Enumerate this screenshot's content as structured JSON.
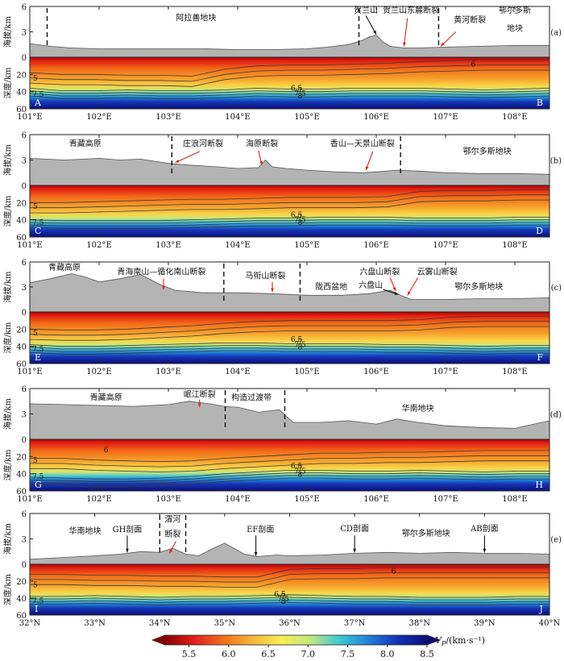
{
  "colors": {
    "topo_fill": "#b4b4b4",
    "topo_line": "#555555",
    "annotation_arrow": "#e0201a",
    "contour": "#3a3a3a",
    "colormap": [
      "#8b0000",
      "#e0201a",
      "#f06f1a",
      "#f6b53a",
      "#f8ee55",
      "#bfe780",
      "#3ec6d2",
      "#1f7fd6",
      "#1431b4",
      "#0c0c78"
    ]
  },
  "colorbar": {
    "label": "Vp/(km·s⁻¹)",
    "label_main": "V",
    "label_sub": "P",
    "label_unit": "/(km·s⁻¹)",
    "ticks": [
      "5.5",
      "6.0",
      "6.5",
      "7.0",
      "7.5",
      "8.0",
      "8.5"
    ],
    "range": [
      5.2,
      8.5
    ]
  },
  "chart_data": [
    {
      "type": "heatmap",
      "panel": "(a)",
      "ylabel_top": "海拔/km",
      "ylabel_bottom": "深度/km",
      "elev_ticks": [
        "6",
        "3"
      ],
      "depth_ticks": [
        "0",
        "20",
        "40",
        "60"
      ],
      "elev_range": [
        0,
        6
      ],
      "depth_range": [
        0,
        60
      ],
      "x_ticks": [
        "101°E",
        "102°E",
        "103°E",
        "104°E",
        "105°E",
        "106°E",
        "107°E",
        "108°E"
      ],
      "x_range": [
        101,
        108.5
      ],
      "x_tick_values": [
        101,
        102,
        103,
        104,
        105,
        106,
        107,
        108
      ],
      "endpoints": [
        "A",
        "B"
      ],
      "topo_x": [
        101,
        101.3,
        101.6,
        102,
        102.5,
        103,
        103.5,
        104,
        104.5,
        105,
        105.3,
        105.6,
        105.8,
        105.9,
        106.0,
        106.1,
        106.2,
        106.4,
        106.6,
        107,
        107.5,
        108,
        108.5
      ],
      "topo_y": [
        1.6,
        1.3,
        1.1,
        1.0,
        1.0,
        1.0,
        1.0,
        0.9,
        0.9,
        1.0,
        1.2,
        1.5,
        2.0,
        2.4,
        2.6,
        1.8,
        1.3,
        1.1,
        1.1,
        1.2,
        1.3,
        1.4,
        1.4
      ],
      "dashes": [
        101.25,
        105.75,
        106.9
      ],
      "labels": [
        {
          "text": "阿拉善地块",
          "x": 103.4,
          "y": 4.7
        },
        {
          "text": "贺兰山",
          "x": 105.85,
          "y": 5.6
        },
        {
          "text": "贺兰山东麓断裂",
          "x": 106.5,
          "y": 5.6
        },
        {
          "text": "黄河断裂",
          "x": 107.35,
          "y": 4.5
        },
        {
          "text": "鄂尔多斯",
          "x": 108.0,
          "y": 5.6
        },
        {
          "text": "地块",
          "x": 108.0,
          "y": 3.5
        }
      ],
      "arrows": [
        {
          "x1": 105.85,
          "y1": 4.9,
          "x2": 106.0,
          "y2": 2.7,
          "color": "#111"
        },
        {
          "x1": 106.45,
          "y1": 4.6,
          "x2": 106.4,
          "y2": 1.3,
          "color": "#e0201a"
        },
        {
          "x1": 107.15,
          "y1": 3.0,
          "x2": 106.93,
          "y2": 1.3,
          "color": "#e0201a"
        }
      ],
      "contour_labels": [
        {
          "text": "6",
          "x": 107.4,
          "y": 8
        },
        {
          "text": "6.5",
          "x": 104.85,
          "y": 36
        },
        {
          "text": "7",
          "x": 104.9,
          "y": 39
        },
        {
          "text": "7.5",
          "x": 104.9,
          "y": 42
        },
        {
          "text": "8",
          "x": 104.9,
          "y": 45
        }
      ],
      "left_contour_labels": [
        "5",
        "7.5"
      ],
      "surface_depth": [
        18,
        20,
        20,
        21,
        21,
        22,
        14,
        10,
        9,
        9,
        8,
        7,
        5,
        4,
        3,
        3,
        3
      ],
      "moho_depth": [
        42,
        45,
        45,
        44,
        45,
        45,
        44,
        42,
        43,
        43,
        42,
        42,
        42,
        43,
        44,
        43,
        42
      ]
    },
    {
      "type": "heatmap",
      "panel": "(b)",
      "ylabel_top": "海拔/km",
      "ylabel_bottom": "深度/km",
      "elev_ticks": [
        "6",
        "3"
      ],
      "depth_ticks": [
        "0",
        "20",
        "40",
        "60"
      ],
      "elev_range": [
        0,
        6
      ],
      "depth_range": [
        0,
        60
      ],
      "x_ticks": [
        "101°E",
        "102°E",
        "103°E",
        "104°E",
        "105°E",
        "106°E",
        "107°E",
        "108°E"
      ],
      "x_range": [
        101,
        108.5
      ],
      "x_tick_values": [
        101,
        102,
        103,
        104,
        105,
        106,
        107,
        108
      ],
      "endpoints": [
        "C",
        "D"
      ],
      "topo_x": [
        101,
        101.5,
        102,
        102.3,
        102.6,
        103,
        103.3,
        103.7,
        104,
        104.3,
        104.4,
        104.5,
        104.7,
        105,
        105.4,
        105.8,
        106,
        106.3,
        106.6,
        107,
        107.5,
        108,
        108.5
      ],
      "topo_y": [
        3.2,
        3.0,
        3.2,
        3.0,
        3.1,
        2.6,
        2.4,
        2.2,
        2.0,
        2.1,
        3.0,
        2.2,
        2.0,
        1.8,
        1.6,
        1.5,
        1.6,
        1.8,
        1.7,
        1.5,
        1.4,
        1.4,
        1.3
      ],
      "dashes": [
        103.05,
        106.35
      ],
      "labels": [
        {
          "text": "青藏高原",
          "x": 101.8,
          "y": 5.0
        },
        {
          "text": "庄浪河断裂",
          "x": 103.5,
          "y": 5.0
        },
        {
          "text": "海原断裂",
          "x": 104.35,
          "y": 5.0
        },
        {
          "text": "香山—天景山断裂",
          "x": 105.8,
          "y": 5.0
        },
        {
          "text": "鄂尔多斯地块",
          "x": 107.6,
          "y": 4.1
        }
      ],
      "arrows": [
        {
          "x1": 103.45,
          "y1": 4.0,
          "x2": 103.1,
          "y2": 2.7,
          "color": "#e0201a"
        },
        {
          "x1": 104.3,
          "y1": 4.1,
          "x2": 104.35,
          "y2": 2.4,
          "color": "#e0201a"
        },
        {
          "x1": 105.95,
          "y1": 4.0,
          "x2": 105.85,
          "y2": 1.8,
          "color": "#e0201a"
        }
      ],
      "contour_labels": [
        {
          "text": "6.5",
          "x": 104.85,
          "y": 34
        },
        {
          "text": "7",
          "x": 104.9,
          "y": 37
        },
        {
          "text": "7.5",
          "x": 104.9,
          "y": 40
        },
        {
          "text": "8",
          "x": 104.9,
          "y": 43
        }
      ],
      "left_contour_labels": [
        "5",
        "7.5"
      ],
      "surface_depth": [
        20,
        20,
        19,
        18,
        17,
        16,
        16,
        15,
        14,
        14,
        14,
        13,
        7,
        6,
        6,
        5,
        5
      ],
      "moho_depth": [
        46,
        47,
        47,
        47,
        47,
        46,
        45,
        44,
        44,
        43,
        43,
        43,
        44,
        44,
        44,
        43,
        43
      ]
    },
    {
      "type": "heatmap",
      "panel": "(c)",
      "ylabel_top": "海拔/km",
      "ylabel_bottom": "深度/km",
      "elev_ticks": [
        "6",
        "3"
      ],
      "depth_ticks": [
        "0",
        "20",
        "40",
        "60"
      ],
      "elev_range": [
        0,
        6
      ],
      "depth_range": [
        0,
        60
      ],
      "x_ticks": [
        "101°E",
        "102°E",
        "103°E",
        "104°E",
        "105°E",
        "106°E",
        "107°E",
        "108°E"
      ],
      "x_range": [
        101,
        108.5
      ],
      "x_tick_values": [
        101,
        102,
        103,
        104,
        105,
        106,
        107,
        108
      ],
      "endpoints": [
        "E",
        "F"
      ],
      "topo_x": [
        101,
        101.3,
        101.6,
        101.8,
        102,
        102.3,
        102.6,
        102.9,
        103.1,
        103.5,
        104,
        104.5,
        105,
        105.5,
        105.9,
        106.2,
        106.35,
        106.5,
        107,
        107.5,
        108,
        108.5
      ],
      "topo_y": [
        3.5,
        4.0,
        4.6,
        4.2,
        3.6,
        4.0,
        4.5,
        3.2,
        2.6,
        2.3,
        2.3,
        2.2,
        2.0,
        2.0,
        2.2,
        2.6,
        2.0,
        1.5,
        1.5,
        1.6,
        1.6,
        1.7
      ],
      "dashes": [
        103.8,
        104.9
      ],
      "labels": [
        {
          "text": "青藏高原",
          "x": 101.5,
          "y": 5.4
        },
        {
          "text": "青海南山—循化南山断裂",
          "x": 102.9,
          "y": 4.9
        },
        {
          "text": "马衔山断裂",
          "x": 104.4,
          "y": 4.4
        },
        {
          "text": "陇西盆地",
          "x": 105.35,
          "y": 3.1
        },
        {
          "text": "六盘山断裂",
          "x": 106.05,
          "y": 4.9
        },
        {
          "text": "六盘山",
          "x": 105.92,
          "y": 3.3
        },
        {
          "text": "云雾山断裂",
          "x": 106.88,
          "y": 4.9
        },
        {
          "text": "鄂尔多斯地块",
          "x": 107.48,
          "y": 3.1
        }
      ],
      "arrows": [
        {
          "x1": 102.93,
          "y1": 4.0,
          "x2": 102.93,
          "y2": 2.7,
          "color": "#e0201a"
        },
        {
          "x1": 104.5,
          "y1": 3.6,
          "x2": 104.5,
          "y2": 2.4,
          "color": "#e0201a"
        },
        {
          "x1": 106.2,
          "y1": 4.1,
          "x2": 106.28,
          "y2": 2.5,
          "color": "#e0201a"
        },
        {
          "x1": 106.6,
          "y1": 4.1,
          "x2": 106.45,
          "y2": 2.0,
          "color": "#e0201a"
        },
        {
          "x1": 106.1,
          "y1": 2.7,
          "x2": 106.32,
          "y2": 2.1,
          "color": "#111"
        }
      ],
      "contour_labels": [
        {
          "text": "6.5",
          "x": 104.85,
          "y": 32
        },
        {
          "text": "7",
          "x": 104.9,
          "y": 35
        },
        {
          "text": "7.5",
          "x": 104.9,
          "y": 38
        },
        {
          "text": "8",
          "x": 104.9,
          "y": 41
        }
      ],
      "left_contour_labels": [
        "5",
        "7.5"
      ],
      "surface_depth": [
        20,
        21,
        21,
        20,
        18,
        16,
        13,
        11,
        10,
        10,
        10,
        10,
        9,
        6,
        5,
        5,
        5
      ],
      "moho_depth": [
        44,
        46,
        46,
        45,
        44,
        43,
        42,
        42,
        43,
        43,
        43,
        44,
        44,
        45,
        46,
        45,
        45
      ]
    },
    {
      "type": "heatmap",
      "panel": "(d)",
      "ylabel_top": "海拔/km",
      "ylabel_bottom": "深度/km",
      "elev_ticks": [
        "6",
        "3"
      ],
      "depth_ticks": [
        "0",
        "20",
        "40",
        "60"
      ],
      "elev_range": [
        0,
        6
      ],
      "depth_range": [
        0,
        60
      ],
      "x_ticks": [
        "101°E",
        "102°E",
        "103°E",
        "104°E",
        "105°E",
        "106°E",
        "107°E",
        "108°E"
      ],
      "x_range": [
        101,
        108.5
      ],
      "x_tick_values": [
        101,
        102,
        103,
        104,
        105,
        106,
        107,
        108
      ],
      "endpoints": [
        "G",
        "H"
      ],
      "topo_x": [
        101,
        101.5,
        102,
        102.5,
        103,
        103.3,
        103.6,
        103.8,
        104,
        104.3,
        104.6,
        104.8,
        105.2,
        105.6,
        106,
        106.3,
        106.6,
        107,
        107.5,
        108,
        108.5
      ],
      "topo_y": [
        4.2,
        4.1,
        4.0,
        3.9,
        4.1,
        4.5,
        4.2,
        3.9,
        3.8,
        3.2,
        3.5,
        2.0,
        2.0,
        2.2,
        1.8,
        2.4,
        2.0,
        1.6,
        1.4,
        1.3,
        2.2
      ],
      "dashes": [
        103.82,
        104.68
      ],
      "labels": [
        {
          "text": "青藏高原",
          "x": 102.1,
          "y": 5.0
        },
        {
          "text": "岷江断裂",
          "x": 103.45,
          "y": 5.4
        },
        {
          "text": "构造过渡带",
          "x": 104.2,
          "y": 5.0
        },
        {
          "text": "华南地块",
          "x": 106.6,
          "y": 3.7
        }
      ],
      "arrows": [
        {
          "x1": 103.45,
          "y1": 4.7,
          "x2": 103.45,
          "y2": 3.8,
          "color": "#e0201a"
        }
      ],
      "contour_labels": [
        {
          "text": "6",
          "x": 102.1,
          "y": 12
        },
        {
          "text": "6.5",
          "x": 104.85,
          "y": 31
        },
        {
          "text": "7",
          "x": 104.9,
          "y": 34
        },
        {
          "text": "7.5",
          "x": 104.9,
          "y": 37
        },
        {
          "text": "8",
          "x": 104.9,
          "y": 41
        }
      ],
      "left_contour_labels": [
        "5",
        "7.5"
      ],
      "surface_depth": [
        22,
        22,
        24,
        25,
        26,
        25,
        22,
        20,
        18,
        16,
        16,
        15,
        15,
        14,
        13,
        13,
        13
      ],
      "moho_depth": [
        50,
        51,
        52,
        52,
        51,
        49,
        46,
        44,
        42,
        42,
        43,
        43,
        42,
        43,
        44,
        43,
        43
      ]
    },
    {
      "type": "heatmap",
      "panel": "(e)",
      "ylabel_top": "海拔/km",
      "ylabel_bottom": "深度/km",
      "elev_ticks": [
        "6",
        "3"
      ],
      "depth_ticks": [
        "0",
        "20",
        "40",
        "60"
      ],
      "elev_range": [
        0,
        6
      ],
      "depth_range": [
        0,
        60
      ],
      "x_ticks": [
        "32°N",
        "33°N",
        "34°N",
        "35°N",
        "36°N",
        "37°N",
        "38°N",
        "39°N",
        "40°N"
      ],
      "x_range": [
        32,
        40
      ],
      "x_tick_values": [
        32,
        33,
        34,
        35,
        36,
        37,
        38,
        39,
        40
      ],
      "endpoints": [
        "I",
        "J"
      ],
      "topo_x": [
        32,
        32.5,
        33,
        33.4,
        33.7,
        34,
        34.2,
        34.4,
        34.6,
        34.8,
        35,
        35.3,
        35.5,
        35.8,
        36,
        36.5,
        37,
        37.5,
        38,
        38.5,
        39,
        39.5,
        40
      ],
      "topo_y": [
        0.6,
        0.8,
        1.0,
        1.2,
        1.5,
        1.4,
        1.9,
        1.2,
        1.0,
        1.8,
        2.5,
        1.2,
        0.9,
        1.1,
        1.0,
        1.1,
        1.3,
        1.4,
        1.3,
        1.4,
        1.3,
        1.3,
        1.2
      ],
      "dashes": [
        34.0,
        34.4
      ],
      "labels": [
        {
          "text": "华南地块",
          "x": 32.85,
          "y": 4.0
        },
        {
          "text": "GH剖面",
          "x": 33.5,
          "y": 4.2
        },
        {
          "text": "渭河",
          "x": 34.2,
          "y": 5.4
        },
        {
          "text": "断裂",
          "x": 34.2,
          "y": 3.6
        },
        {
          "text": "EF剖面",
          "x": 35.55,
          "y": 4.2
        },
        {
          "text": "CD剖面",
          "x": 37.0,
          "y": 4.3
        },
        {
          "text": "鄂尔多斯地块",
          "x": 38.1,
          "y": 3.7
        },
        {
          "text": "AB剖面",
          "x": 39.0,
          "y": 4.3
        }
      ],
      "arrows": [
        {
          "x1": 33.5,
          "y1": 3.4,
          "x2": 33.5,
          "y2": 1.4,
          "color": "#111"
        },
        {
          "x1": 34.25,
          "y1": 2.7,
          "x2": 34.15,
          "y2": 1.3,
          "color": "#e0201a"
        },
        {
          "x1": 35.48,
          "y1": 3.4,
          "x2": 35.48,
          "y2": 1.0,
          "color": "#111"
        },
        {
          "x1": 37.0,
          "y1": 3.4,
          "x2": 37.0,
          "y2": 1.4,
          "color": "#111"
        },
        {
          "x1": 39.0,
          "y1": 3.4,
          "x2": 39.0,
          "y2": 1.4,
          "color": "#111"
        }
      ],
      "contour_labels": [
        {
          "text": "6",
          "x": 37.6,
          "y": 8
        },
        {
          "text": "6.5",
          "x": 35.85,
          "y": 35
        },
        {
          "text": "7",
          "x": 35.9,
          "y": 38
        },
        {
          "text": "7.5",
          "x": 35.9,
          "y": 41
        },
        {
          "text": "8",
          "x": 35.9,
          "y": 44
        }
      ],
      "left_contour_labels": [
        "5",
        "7.5"
      ],
      "surface_depth": [
        12,
        12,
        13,
        13,
        14,
        14,
        15,
        15,
        6,
        5,
        5,
        4,
        4,
        4,
        4,
        4,
        4
      ],
      "moho_depth": [
        44,
        44,
        43,
        44,
        45,
        44,
        44,
        43,
        42,
        43,
        44,
        44,
        45,
        45,
        45,
        44,
        44
      ]
    }
  ]
}
